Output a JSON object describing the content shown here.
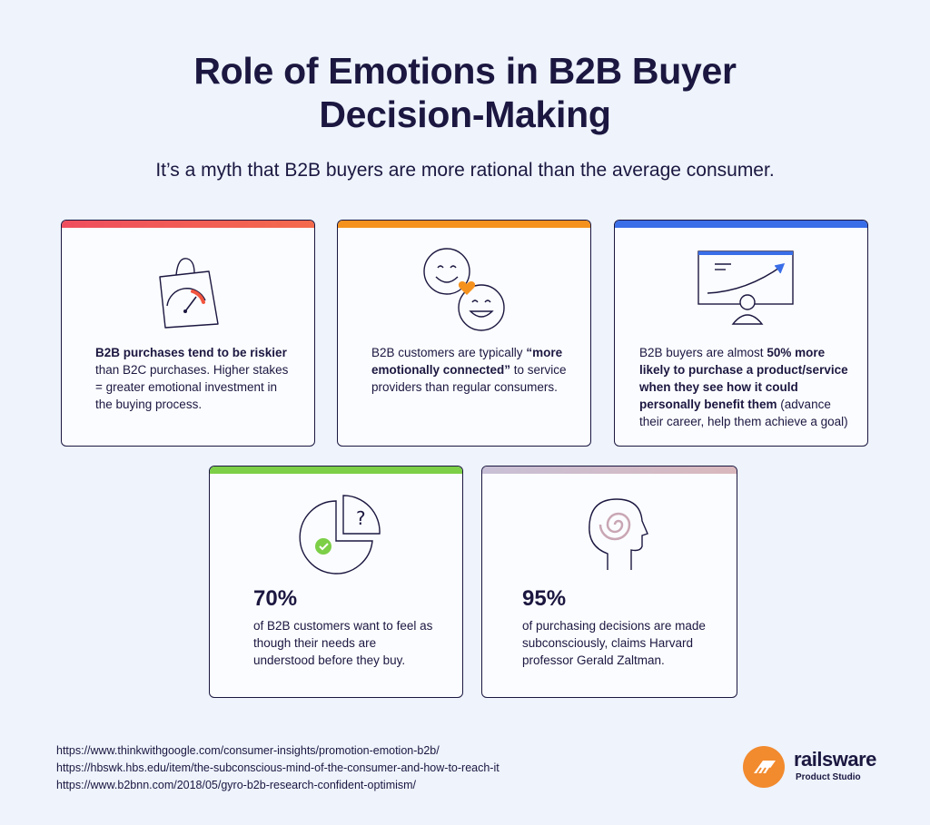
{
  "header": {
    "title_line1": "Role of Emotions in B2B Buyer",
    "title_line2": "Decision-Making",
    "subtitle": "It’s a myth that B2B buyers are more rational than the average consumer."
  },
  "cards": [
    {
      "icon": "shopping-bag-gauge-icon",
      "accent": "#ef4e5e",
      "bold_lead": "B2B purchases tend to be riskier",
      "rest": "than B2C purchases. Higher stakes = greater emotional investment in the buying process."
    },
    {
      "icon": "smiley-faces-heart-icon",
      "accent": "#f5921e",
      "pre": "B2B customers are typically ",
      "bold": "“more emotionally connected”",
      "post": " to service providers than regular consumers."
    },
    {
      "icon": "presentation-growth-icon",
      "accent": "#3a6ee8",
      "pre": "B2B buyers are almost ",
      "bold": "50% more likely to purchase a product/service when they see how it could personally benefit them",
      "post": " (advance their career, help them achieve a goal)"
    },
    {
      "icon": "pie-chart-check-icon",
      "accent": "#7ccf47",
      "stat": "70%",
      "text": "of B2B customers want to feel as though their needs are understood before they buy."
    },
    {
      "icon": "head-spiral-icon",
      "accent": "#c9bac8",
      "stat": "95%",
      "text": "of purchasing decisions are made subconsciously, claims Harvard professor Gerald Zaltman."
    }
  ],
  "sources": [
    "https://www.thinkwithgoogle.com/consumer-insights/promotion-emotion-b2b/",
    "https://hbswk.hbs.edu/item/the-subconscious-mind-of-the-consumer-and-how-to-reach-it",
    "https://www.b2bnn.com/2018/05/gyro-b2b-research-confident-optimism/"
  ],
  "logo": {
    "name": "railsware",
    "tagline": "Product Studio",
    "color": "#f28a2e"
  }
}
